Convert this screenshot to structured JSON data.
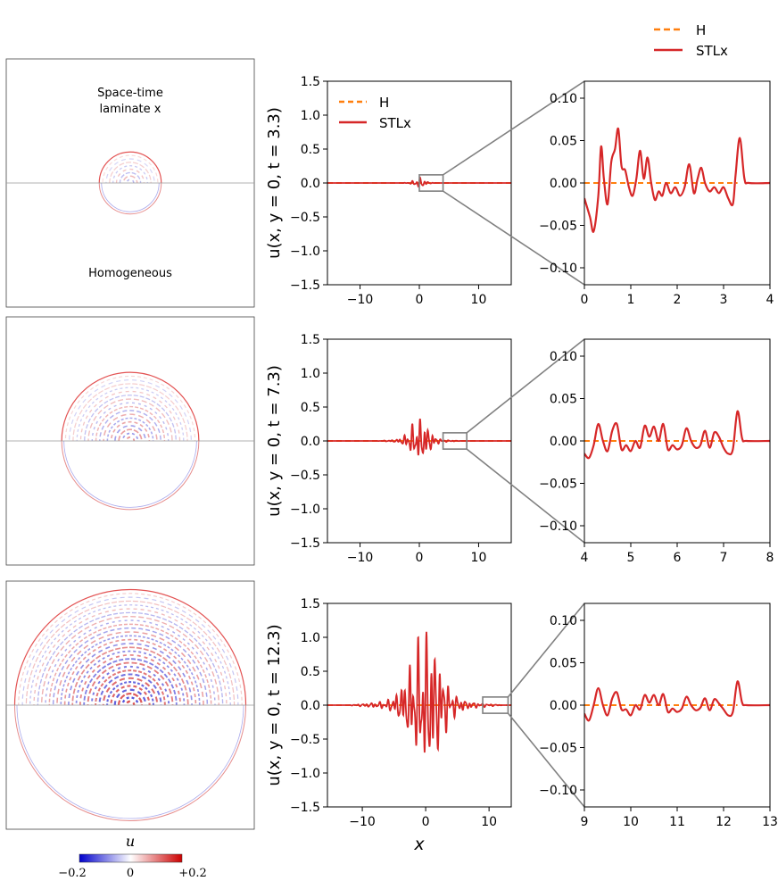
{
  "figure_legend": {
    "entries": [
      "H",
      "STLx"
    ]
  },
  "fields": [
    {
      "time": "3.3",
      "label_top": "Space-time",
      "label_top2": "laminate x",
      "label_bottom": "Homogeneous",
      "radius_data": 3.3,
      "intensity": 0.35
    },
    {
      "time": "7.3",
      "radius_data": 7.3,
      "intensity": 0.55
    },
    {
      "time": "12.3",
      "radius_data": 12.3,
      "intensity": 1.0
    }
  ],
  "colorbar": {
    "label": "u",
    "min_label": "−0.2",
    "mid_label": "0",
    "max_label": "+0.2",
    "min": -0.2,
    "max": 0.2,
    "colors": [
      "#0000cc",
      "#ffffff",
      "#cc0000"
    ]
  },
  "colors": {
    "H": "#ff7f0e",
    "STLx": "#d62728",
    "zoom_box": "#808080",
    "axis": "#000000"
  },
  "chart_data": [
    {
      "type": "line",
      "row": 0,
      "panel": "full",
      "ylabel": "u(x, y = 0, t = 3.3)",
      "xlabel": "",
      "xlim": [
        -15.5,
        15.5
      ],
      "ylim": [
        -1.5,
        1.5
      ],
      "xticks": [
        -10,
        0,
        10
      ],
      "xtick_labels": [
        "−10",
        "0",
        "10"
      ],
      "yticks": [
        -1.5,
        -1.0,
        -0.5,
        0.0,
        0.5,
        1.0,
        1.5
      ],
      "ytick_labels": [
        "−1.5",
        "−1.0",
        "−0.5",
        "0.0",
        "0.5",
        "1.0",
        "1.5"
      ],
      "legend": [
        "H",
        "STLx"
      ],
      "legend_loc": "upper-left",
      "front": 3.3,
      "amplitude": 0.06,
      "zoom_box": {
        "x": [
          0,
          4
        ],
        "y": [
          -0.12,
          0.12
        ]
      }
    },
    {
      "type": "line",
      "row": 0,
      "panel": "zoom",
      "xlim": [
        0,
        4
      ],
      "ylim": [
        -0.12,
        0.12
      ],
      "xticks": [
        0,
        1,
        2,
        3,
        4
      ],
      "xtick_labels": [
        "0",
        "1",
        "2",
        "3",
        "4"
      ],
      "yticks": [
        -0.1,
        -0.05,
        0.0,
        0.05,
        0.1
      ],
      "ytick_labels": [
        "−0.10",
        "−0.05",
        "0.00",
        "0.05",
        "0.10"
      ],
      "series": [
        {
          "name": "H",
          "x": [
            0,
            3.3
          ],
          "y": [
            0,
            0
          ]
        },
        {
          "name": "STLx",
          "x": [
            0,
            0.12,
            0.2,
            0.3,
            0.36,
            0.42,
            0.5,
            0.58,
            0.66,
            0.73,
            0.8,
            0.88,
            0.96,
            1.04,
            1.12,
            1.2,
            1.28,
            1.36,
            1.44,
            1.52,
            1.6,
            1.68,
            1.76,
            1.86,
            1.96,
            2.06,
            2.16,
            2.26,
            2.36,
            2.44,
            2.52,
            2.6,
            2.7,
            2.8,
            2.9,
            3.0,
            3.1,
            3.2,
            3.26,
            3.35,
            3.45,
            3.55,
            4.0
          ],
          "y": [
            -0.018,
            -0.04,
            -0.057,
            -0.015,
            0.043,
            0.005,
            -0.025,
            0.025,
            0.04,
            0.064,
            0.02,
            0.015,
            -0.005,
            -0.015,
            0.005,
            0.038,
            0.005,
            0.03,
            0.0,
            -0.02,
            -0.01,
            -0.015,
            0.0,
            -0.012,
            -0.005,
            -0.015,
            -0.005,
            0.022,
            -0.012,
            0.005,
            0.018,
            0.0,
            -0.01,
            -0.005,
            -0.012,
            -0.005,
            -0.018,
            -0.025,
            0.01,
            0.053,
            0.005,
            0.0,
            0.0
          ]
        }
      ]
    },
    {
      "type": "line",
      "row": 1,
      "panel": "full",
      "ylabel": "u(x, y = 0, t = 7.3)",
      "xlabel": "",
      "xlim": [
        -15.5,
        15.5
      ],
      "ylim": [
        -1.5,
        1.5
      ],
      "xticks": [
        -10,
        0,
        10
      ],
      "xtick_labels": [
        "−10",
        "0",
        "10"
      ],
      "yticks": [
        -1.5,
        -1.0,
        -0.5,
        0.0,
        0.5,
        1.0,
        1.5
      ],
      "ytick_labels": [
        "−1.5",
        "−1.0",
        "−0.5",
        "0.0",
        "0.5",
        "1.0",
        "1.5"
      ],
      "front": 7.3,
      "amplitude": 0.25,
      "zoom_box": {
        "x": [
          4,
          8
        ],
        "y": [
          -0.12,
          0.12
        ]
      }
    },
    {
      "type": "line",
      "row": 1,
      "panel": "zoom",
      "xlim": [
        4,
        8
      ],
      "ylim": [
        -0.12,
        0.12
      ],
      "xticks": [
        4,
        5,
        6,
        7,
        8
      ],
      "xtick_labels": [
        "4",
        "5",
        "6",
        "7",
        "8"
      ],
      "yticks": [
        -0.1,
        -0.05,
        0.0,
        0.05,
        0.1
      ],
      "ytick_labels": [
        "−0.10",
        "−0.05",
        "0.00",
        "0.05",
        "0.10"
      ],
      "series": [
        {
          "name": "H",
          "x": [
            4,
            7.3
          ],
          "y": [
            0,
            0
          ]
        },
        {
          "name": "STLx",
          "x": [
            4.0,
            4.1,
            4.2,
            4.3,
            4.4,
            4.5,
            4.6,
            4.7,
            4.8,
            4.9,
            5.0,
            5.1,
            5.2,
            5.3,
            5.4,
            5.5,
            5.6,
            5.7,
            5.8,
            5.9,
            6.0,
            6.1,
            6.2,
            6.3,
            6.4,
            6.5,
            6.6,
            6.7,
            6.8,
            6.9,
            7.0,
            7.1,
            7.2,
            7.3,
            7.4,
            7.5,
            8.0
          ],
          "y": [
            -0.015,
            -0.02,
            -0.005,
            0.02,
            0.0,
            -0.012,
            0.012,
            0.02,
            -0.01,
            -0.005,
            -0.012,
            0.0,
            -0.008,
            0.018,
            0.005,
            0.017,
            0.0,
            0.02,
            -0.01,
            -0.005,
            -0.01,
            -0.005,
            0.015,
            0.0,
            -0.008,
            -0.005,
            0.012,
            -0.008,
            0.01,
            0.005,
            -0.008,
            -0.015,
            -0.01,
            0.035,
            0.003,
            0.0,
            0.0
          ]
        }
      ]
    },
    {
      "type": "line",
      "row": 2,
      "panel": "full",
      "ylabel": "u(x, y = 0, t = 12.3)",
      "xlabel": "x",
      "xlim": [
        -15.5,
        13.5
      ],
      "ylim": [
        -1.5,
        1.5
      ],
      "xticks": [
        -10,
        0,
        10
      ],
      "xtick_labels": [
        "−10",
        "0",
        "10"
      ],
      "yticks": [
        -1.5,
        -1.0,
        -0.5,
        0.0,
        0.5,
        1.0,
        1.5
      ],
      "ytick_labels": [
        "−1.5",
        "−1.0",
        "−0.5",
        "0.0",
        "0.5",
        "1.0",
        "1.5"
      ],
      "front": 12.3,
      "amplitude": 0.82,
      "zoom_box": {
        "x": [
          9,
          13
        ],
        "y": [
          -0.12,
          0.12
        ]
      }
    },
    {
      "type": "line",
      "row": 2,
      "panel": "zoom",
      "xlim": [
        9,
        13
      ],
      "ylim": [
        -0.12,
        0.12
      ],
      "xticks": [
        9,
        10,
        11,
        12,
        13
      ],
      "xtick_labels": [
        "9",
        "10",
        "11",
        "12",
        "13"
      ],
      "yticks": [
        -0.1,
        -0.05,
        0.0,
        0.05,
        0.1
      ],
      "ytick_labels": [
        "−0.10",
        "−0.05",
        "0.00",
        "0.05",
        "0.10"
      ],
      "series": [
        {
          "name": "H",
          "x": [
            9,
            12.3
          ],
          "y": [
            0,
            0
          ]
        },
        {
          "name": "STLx",
          "x": [
            9.0,
            9.1,
            9.2,
            9.3,
            9.4,
            9.5,
            9.6,
            9.7,
            9.8,
            9.9,
            10.0,
            10.1,
            10.2,
            10.3,
            10.4,
            10.5,
            10.6,
            10.7,
            10.8,
            10.9,
            11.0,
            11.1,
            11.2,
            11.3,
            11.4,
            11.5,
            11.6,
            11.7,
            11.8,
            11.9,
            12.0,
            12.1,
            12.2,
            12.3,
            12.4,
            12.5,
            13.0
          ],
          "y": [
            -0.01,
            -0.018,
            0.0,
            0.02,
            0.0,
            -0.012,
            0.008,
            0.015,
            -0.005,
            -0.005,
            -0.012,
            0.0,
            -0.005,
            0.012,
            0.003,
            0.012,
            0.0,
            0.013,
            -0.008,
            -0.004,
            -0.008,
            -0.004,
            0.01,
            0.0,
            -0.006,
            -0.003,
            0.008,
            -0.006,
            0.007,
            0.002,
            -0.005,
            -0.012,
            -0.008,
            0.028,
            0.003,
            0.0,
            0.0
          ]
        }
      ]
    }
  ]
}
